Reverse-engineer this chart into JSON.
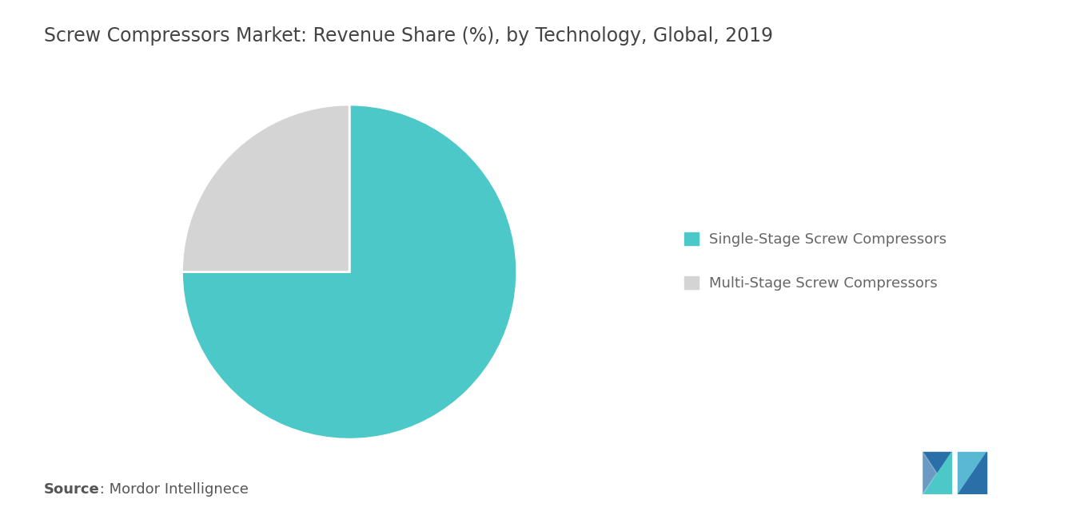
{
  "title": "Screw Compressors Market: Revenue Share (%), by Technology, Global, 2019",
  "slices": [
    75,
    25
  ],
  "labels": [
    "Single-Stage Screw Compressors",
    "Multi-Stage Screw Compressors"
  ],
  "colors": [
    "#4dc8c8",
    "#d4d4d4"
  ],
  "startangle": 90,
  "source_bold": "Source",
  "source_rest": " : Mordor Intellignece",
  "background_color": "#ffffff",
  "title_fontsize": 17,
  "legend_fontsize": 13,
  "source_fontsize": 13,
  "logo_left_dark": "#2a6fa8",
  "logo_left_light": "#4dc8c8",
  "logo_right_dark": "#2a6fa8",
  "logo_right_light": "#5ab8d4"
}
